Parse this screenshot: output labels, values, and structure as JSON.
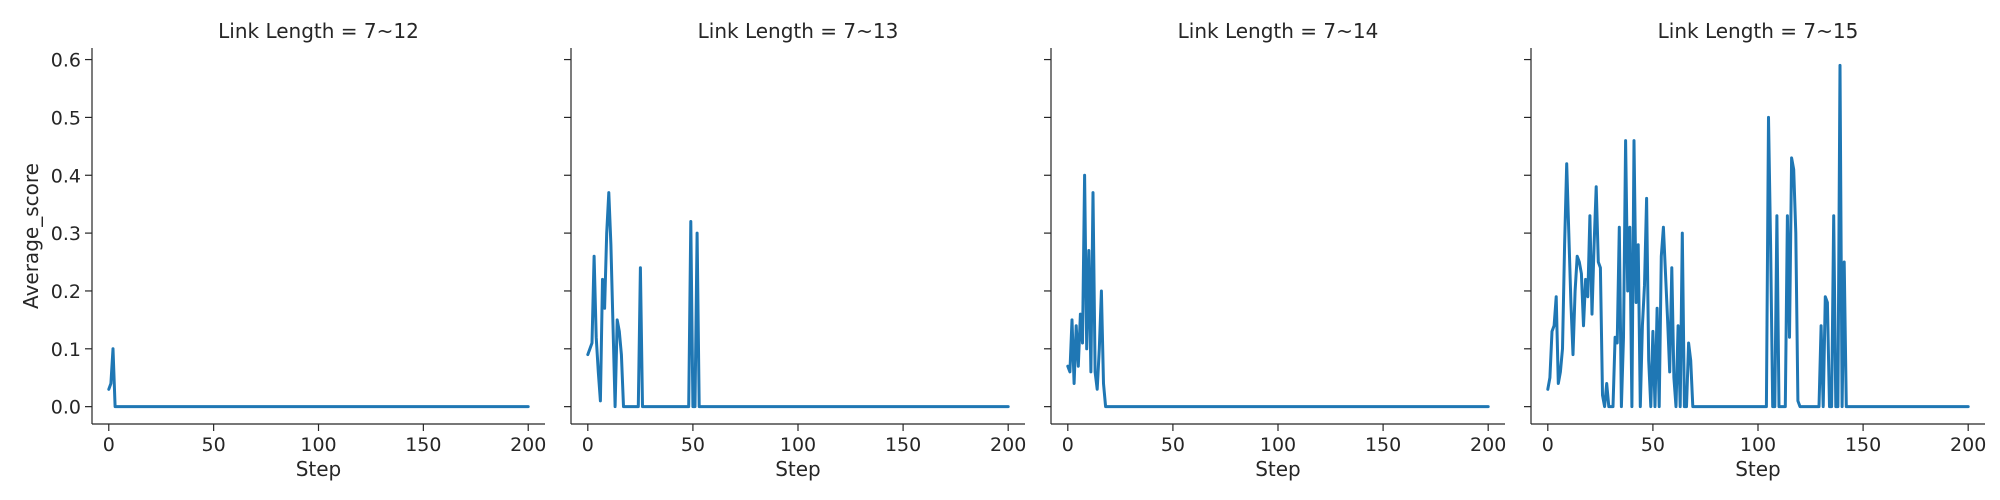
{
  "figure": {
    "line_color": "#1f77b4",
    "axis_color": "#262626"
  },
  "chart_data": [
    {
      "type": "line",
      "title": "Link Length = 7~12",
      "xlabel": "Step",
      "ylabel": "Average_score",
      "xlim": [
        -8,
        208
      ],
      "ylim": [
        -0.03,
        0.62
      ],
      "xticks": [
        0,
        50,
        100,
        150,
        200
      ],
      "yticks": [
        0.0,
        0.1,
        0.2,
        0.3,
        0.4,
        0.5,
        0.6
      ],
      "ytick_labels_shown": true,
      "grid": false,
      "series": [
        {
          "x": [
            0,
            1,
            2,
            3,
            4,
            200
          ],
          "y": [
            0.03,
            0.04,
            0.1,
            0.0,
            0.0,
            0.0
          ]
        }
      ]
    },
    {
      "type": "line",
      "title": "Link Length = 7~13",
      "xlabel": "Step",
      "ylabel": "",
      "xlim": [
        -8,
        208
      ],
      "ylim": [
        -0.03,
        0.62
      ],
      "xticks": [
        0,
        50,
        100,
        150,
        200
      ],
      "yticks": [
        0.0,
        0.1,
        0.2,
        0.3,
        0.4,
        0.5,
        0.6
      ],
      "ytick_labels_shown": false,
      "grid": false,
      "series": [
        {
          "x": [
            0,
            2,
            3,
            4,
            5,
            6,
            7,
            8,
            9,
            10,
            11,
            12,
            13,
            14,
            15,
            16,
            17,
            18,
            19,
            20,
            22,
            24,
            25,
            26,
            27,
            47,
            48,
            49,
            50,
            51,
            52,
            53,
            200
          ],
          "y": [
            0.09,
            0.11,
            0.26,
            0.12,
            0.06,
            0.01,
            0.22,
            0.17,
            0.3,
            0.37,
            0.28,
            0.14,
            0.0,
            0.15,
            0.13,
            0.09,
            0.0,
            0.0,
            0.0,
            0.0,
            0.0,
            0.0,
            0.24,
            0.0,
            0.0,
            0.0,
            0.0,
            0.32,
            0.0,
            0.0,
            0.3,
            0.0,
            0.0
          ]
        }
      ]
    },
    {
      "type": "line",
      "title": "Link Length = 7~14",
      "xlabel": "Step",
      "ylabel": "",
      "xlim": [
        -8,
        208
      ],
      "ylim": [
        -0.03,
        0.62
      ],
      "xticks": [
        0,
        50,
        100,
        150,
        200
      ],
      "yticks": [
        0.0,
        0.1,
        0.2,
        0.3,
        0.4,
        0.5,
        0.6
      ],
      "ytick_labels_shown": false,
      "grid": false,
      "series": [
        {
          "x": [
            0,
            1,
            2,
            3,
            4,
            5,
            6,
            7,
            8,
            9,
            10,
            11,
            12,
            13,
            14,
            15,
            16,
            17,
            18,
            19,
            20,
            21,
            22,
            200
          ],
          "y": [
            0.07,
            0.06,
            0.15,
            0.04,
            0.14,
            0.07,
            0.16,
            0.11,
            0.4,
            0.1,
            0.27,
            0.06,
            0.37,
            0.06,
            0.03,
            0.1,
            0.2,
            0.04,
            0.0,
            0.0,
            0.0,
            0.0,
            0.0,
            0.0
          ]
        }
      ]
    },
    {
      "type": "line",
      "title": "Link Length = 7~15",
      "xlabel": "Step",
      "ylabel": "",
      "xlim": [
        -8,
        208
      ],
      "ylim": [
        -0.03,
        0.62
      ],
      "xticks": [
        0,
        50,
        100,
        150,
        200
      ],
      "yticks": [
        0.0,
        0.1,
        0.2,
        0.3,
        0.4,
        0.5,
        0.6
      ],
      "ytick_labels_shown": false,
      "grid": false,
      "series": [
        {
          "x": [
            0,
            1,
            2,
            3,
            4,
            5,
            6,
            7,
            8,
            9,
            10,
            11,
            12,
            13,
            14,
            15,
            16,
            17,
            18,
            19,
            20,
            21,
            22,
            23,
            24,
            25,
            26,
            27,
            28,
            29,
            30,
            31,
            32,
            33,
            34,
            35,
            36,
            37,
            38,
            39,
            40,
            41,
            42,
            43,
            44,
            45,
            46,
            47,
            48,
            49,
            50,
            51,
            52,
            53,
            54,
            55,
            56,
            57,
            58,
            59,
            60,
            61,
            62,
            63,
            64,
            65,
            66,
            67,
            68,
            69,
            70,
            71,
            72,
            73,
            74,
            75,
            76,
            77,
            78,
            79,
            80,
            100,
            102,
            103,
            104,
            105,
            106,
            107,
            108,
            109,
            110,
            111,
            112,
            113,
            114,
            115,
            116,
            117,
            118,
            119,
            120,
            121,
            122,
            123,
            124,
            125,
            126,
            127,
            128,
            129,
            130,
            131,
            132,
            133,
            134,
            135,
            136,
            137,
            138,
            139,
            140,
            141,
            142,
            143,
            144,
            145,
            200
          ],
          "y": [
            0.03,
            0.05,
            0.13,
            0.14,
            0.19,
            0.04,
            0.06,
            0.1,
            0.28,
            0.42,
            0.3,
            0.18,
            0.09,
            0.2,
            0.26,
            0.25,
            0.23,
            0.14,
            0.22,
            0.19,
            0.33,
            0.16,
            0.28,
            0.38,
            0.25,
            0.24,
            0.02,
            0.0,
            0.04,
            0.0,
            0.0,
            0.0,
            0.12,
            0.11,
            0.31,
            0.0,
            0.12,
            0.46,
            0.2,
            0.31,
            0.0,
            0.46,
            0.18,
            0.28,
            0.0,
            0.14,
            0.21,
            0.36,
            0.08,
            0.0,
            0.13,
            0.0,
            0.17,
            0.0,
            0.26,
            0.31,
            0.23,
            0.15,
            0.06,
            0.24,
            0.05,
            0.0,
            0.14,
            0.0,
            0.3,
            0.0,
            0.0,
            0.11,
            0.08,
            0.0,
            0.0,
            0.0,
            0.0,
            0.0,
            0.0,
            0.0,
            0.0,
            0.0,
            0.0,
            0.0,
            0.0,
            0.0,
            0.0,
            0.0,
            0.0,
            0.5,
            0.28,
            0.0,
            0.0,
            0.33,
            0.0,
            0.0,
            0.0,
            0.0,
            0.33,
            0.12,
            0.43,
            0.41,
            0.3,
            0.01,
            0.0,
            0.0,
            0.0,
            0.0,
            0.0,
            0.0,
            0.0,
            0.0,
            0.0,
            0.0,
            0.14,
            0.0,
            0.19,
            0.18,
            0.0,
            0.0,
            0.33,
            0.0,
            0.0,
            0.59,
            0.0,
            0.25,
            0.0,
            0.0,
            0.0,
            0.0,
            0.0
          ]
        }
      ]
    }
  ]
}
